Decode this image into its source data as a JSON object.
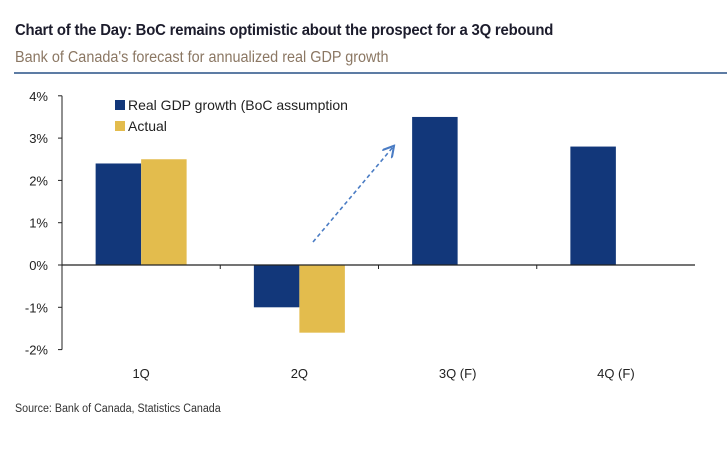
{
  "title": "Chart of the Day: BoC remains optimistic about the prospect for a 3Q rebound",
  "subtitle": "Bank of Canada's forecast for annualized real GDP growth",
  "source": "Source: Bank of Canada, Statistics Canada",
  "colors": {
    "boc": "#12377a",
    "actual": "#e3bc4d",
    "arrow": "#4a7cc4"
  },
  "chart_data": {
    "type": "bar",
    "categories": [
      "1Q",
      "2Q",
      "3Q (F)",
      "4Q (F)"
    ],
    "series": [
      {
        "name": "Real GDP growth (BoC assumption",
        "values": [
          2.4,
          -1.0,
          3.5,
          2.8
        ]
      },
      {
        "name": "Actual",
        "values": [
          2.5,
          -1.6,
          null,
          null
        ]
      }
    ],
    "ylim": [
      -2,
      4
    ],
    "yticks": [
      4,
      3,
      2,
      1,
      0,
      -1,
      -2
    ],
    "ytick_labels": [
      "4%",
      "3%",
      "2%",
      "1%",
      "0%",
      "-1%",
      "-2%"
    ],
    "legend_position": "top-left",
    "grid": false,
    "annotation": "dashed upward arrow from 2Q toward 3Q"
  }
}
